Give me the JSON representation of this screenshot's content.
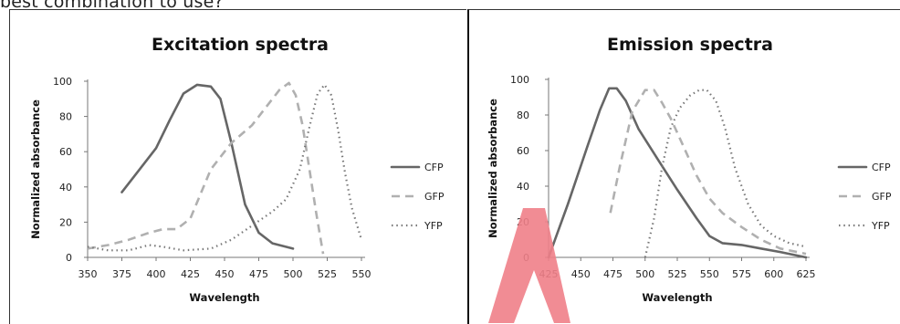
{
  "header": {
    "text": "best combination to use?"
  },
  "legend_entries": [
    "CFP",
    "GFP",
    "YFP"
  ],
  "colors": {
    "CFP": "#666666",
    "GFP": "#b0b0b0",
    "YFP": "#777777",
    "watermark": "#f07f88"
  },
  "chart_data": [
    {
      "type": "line",
      "title": "Excitation spectra",
      "xlabel": "Wavelength",
      "ylabel": "Normalized absorbance",
      "xlim": [
        350,
        550
      ],
      "ylim": [
        0,
        100
      ],
      "xticks": [
        350,
        375,
        400,
        425,
        450,
        475,
        500,
        525,
        550
      ],
      "yticks": [
        0,
        20,
        40,
        60,
        80,
        100
      ],
      "legend": "right",
      "series": [
        {
          "name": "CFP",
          "style": "solid",
          "x": [
            375,
            385,
            400,
            410,
            420,
            430,
            440,
            447,
            455,
            465,
            475,
            485,
            500
          ],
          "y": [
            37,
            47,
            62,
            78,
            93,
            98,
            97,
            90,
            65,
            30,
            14,
            8,
            5
          ]
        },
        {
          "name": "GFP",
          "style": "dashed",
          "x": [
            350,
            365,
            380,
            395,
            405,
            415,
            425,
            440,
            455,
            470,
            480,
            490,
            497,
            502,
            507,
            512,
            517,
            522
          ],
          "y": [
            5,
            7,
            10,
            14,
            16,
            16,
            22,
            50,
            65,
            75,
            85,
            95,
            99,
            92,
            75,
            50,
            25,
            2
          ]
        },
        {
          "name": "YFP",
          "style": "dotted",
          "x": [
            350,
            365,
            380,
            395,
            405,
            420,
            440,
            455,
            470,
            485,
            495,
            505,
            512,
            518,
            523,
            528,
            533,
            538,
            543,
            550
          ],
          "y": [
            6,
            4,
            4,
            7,
            6,
            4,
            5,
            10,
            18,
            26,
            33,
            50,
            74,
            93,
            98,
            92,
            72,
            48,
            28,
            10
          ]
        }
      ]
    },
    {
      "type": "line",
      "title": "Emission spectra",
      "xlabel": "Wavelength",
      "ylabel": "Normalized absorbance",
      "xlim": [
        425,
        625
      ],
      "ylim": [
        0,
        100
      ],
      "xticks": [
        425,
        450,
        475,
        500,
        525,
        550,
        575,
        600,
        625
      ],
      "yticks": [
        0,
        20,
        40,
        60,
        80,
        100
      ],
      "legend": "right",
      "series": [
        {
          "name": "CFP",
          "style": "solid",
          "x": [
            425,
            440,
            455,
            465,
            472,
            478,
            485,
            495,
            510,
            525,
            540,
            550,
            560,
            575,
            590,
            605,
            625
          ],
          "y": [
            0,
            30,
            62,
            83,
            95,
            95,
            88,
            72,
            55,
            38,
            22,
            12,
            8,
            7,
            5,
            3,
            0
          ]
        },
        {
          "name": "GFP",
          "style": "dashed",
          "x": [
            473,
            480,
            490,
            500,
            507,
            513,
            520,
            530,
            540,
            550,
            560,
            575,
            590,
            605,
            625
          ],
          "y": [
            25,
            50,
            82,
            94,
            94,
            87,
            78,
            62,
            46,
            33,
            25,
            17,
            10,
            5,
            2
          ]
        },
        {
          "name": "YFP",
          "style": "dotted",
          "x": [
            500,
            507,
            513,
            520,
            527,
            535,
            542,
            548,
            555,
            562,
            570,
            580,
            590,
            600,
            612,
            625
          ],
          "y": [
            0,
            22,
            50,
            73,
            84,
            91,
            94,
            94,
            88,
            73,
            50,
            30,
            18,
            12,
            8,
            6
          ]
        }
      ]
    }
  ]
}
